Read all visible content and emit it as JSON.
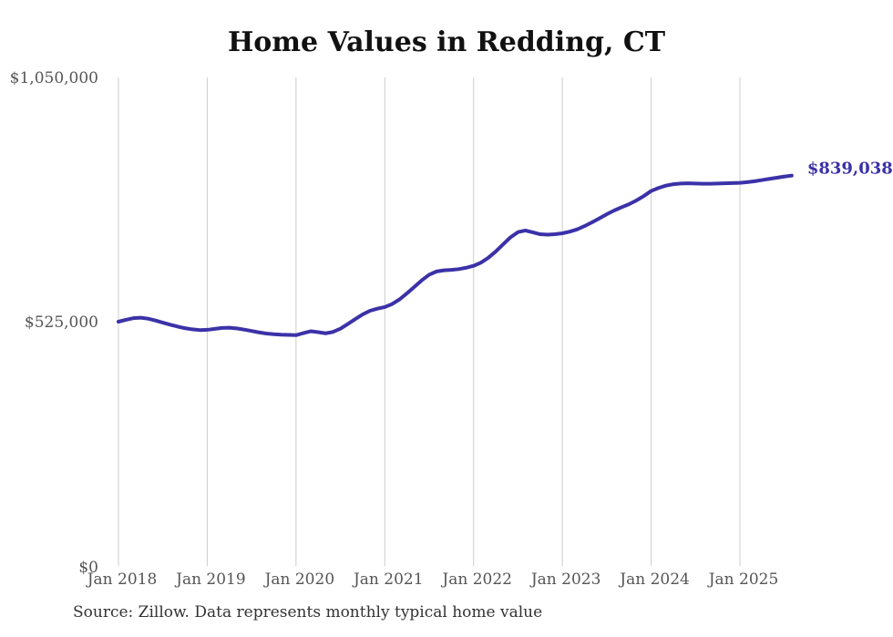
{
  "title": "Home Values in Redding, CT",
  "source_note": "Source: Zillow. Data represents monthly typical home value",
  "colors": {
    "line": "#3b32a8",
    "grid": "#cccccc",
    "title": "#111111",
    "tick_label": "#555555",
    "source": "#333333",
    "end_label": "#3b32a8",
    "background": "#ffffff"
  },
  "chart_data": {
    "type": "line",
    "title": "Home Values in Redding, CT",
    "xlabel": "",
    "ylabel": "",
    "ylim": [
      0,
      1050000
    ],
    "grid": "vertical-only",
    "legend": "none",
    "x_start_month": "Jan 2018",
    "x_end_month": "Aug 2025",
    "x_tick_labels": [
      "Jan 2018",
      "Jan 2019",
      "Jan 2020",
      "Jan 2021",
      "Jan 2022",
      "Jan 2023",
      "Jan 2024",
      "Jan 2025"
    ],
    "x_tick_interval_months": 12,
    "y_ticks": [
      {
        "label": "$0",
        "value": 0
      },
      {
        "label": "$525,000",
        "value": 525000
      },
      {
        "label": "$1,050,000",
        "value": 1050000
      }
    ],
    "last_value": 839038,
    "last_value_label": "$839,038",
    "series": [
      {
        "name": "Monthly typical home value",
        "values": [
          525000,
          529000,
          532500,
          533500,
          531500,
          527500,
          523000,
          518500,
          514500,
          511000,
          508500,
          507000,
          507500,
          509500,
          511500,
          512000,
          510500,
          508000,
          505000,
          502000,
          499500,
          498000,
          497000,
          496500,
          496000,
          500500,
          504500,
          502500,
          500000,
          503000,
          510000,
          520000,
          530500,
          540500,
          548500,
          553000,
          556500,
          563000,
          573000,
          586000,
          600000,
          614000,
          626000,
          633000,
          635500,
          636500,
          638000,
          641000,
          645000,
          652000,
          662500,
          676000,
          691500,
          706500,
          717500,
          721000,
          717000,
          713000,
          712000,
          713000,
          715000,
          718500,
          723500,
          730500,
          738500,
          747000,
          756000,
          764000,
          771000,
          777500,
          785500,
          795000,
          806000,
          812500,
          817500,
          820500,
          822000,
          822500,
          822000,
          821500,
          821500,
          822000,
          822500,
          823000,
          823500,
          825000,
          827000,
          829500,
          832000,
          834500,
          837000,
          839038
        ]
      }
    ]
  }
}
